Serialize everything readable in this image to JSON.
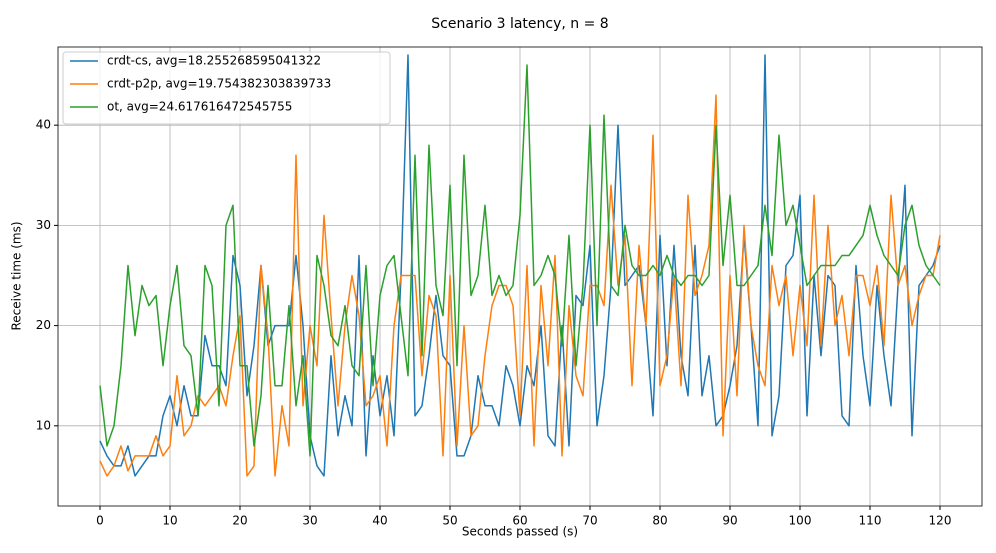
{
  "chart_data": {
    "type": "line",
    "title": "Scenario 3 latency, n = 8",
    "x_label": "Seconds passed (s)",
    "y_label": "Receive time (ms)",
    "x": [
      0,
      1,
      2,
      3,
      4,
      5,
      6,
      7,
      8,
      9,
      10,
      11,
      12,
      13,
      14,
      15,
      16,
      17,
      18,
      19,
      20,
      21,
      22,
      23,
      24,
      25,
      26,
      27,
      28,
      29,
      30,
      31,
      32,
      33,
      34,
      35,
      36,
      37,
      38,
      39,
      40,
      41,
      42,
      43,
      44,
      45,
      46,
      47,
      48,
      49,
      50,
      51,
      52,
      53,
      54,
      55,
      56,
      57,
      58,
      59,
      60,
      61,
      62,
      63,
      64,
      65,
      66,
      67,
      68,
      69,
      70,
      71,
      72,
      73,
      74,
      75,
      76,
      77,
      78,
      79,
      80,
      81,
      82,
      83,
      84,
      85,
      86,
      87,
      88,
      89,
      90,
      91,
      92,
      93,
      94,
      95,
      96,
      97,
      98,
      99,
      100,
      101,
      102,
      103,
      104,
      105,
      106,
      107,
      108,
      109,
      110,
      111,
      112,
      113,
      114,
      115,
      116,
      117,
      118,
      119,
      120
    ],
    "series": [
      {
        "name": "crdt-cs, avg=18.255268595041322",
        "color": "#1f77b4",
        "values": [
          8.5,
          7,
          6,
          6,
          8,
          5,
          6,
          7,
          7,
          11,
          13,
          10,
          14,
          11,
          11,
          19,
          16,
          16,
          14,
          27,
          24,
          13,
          18,
          26,
          18,
          20,
          20,
          20,
          27,
          20,
          9,
          6,
          5,
          17,
          9,
          13,
          10,
          27,
          7,
          17,
          11,
          15,
          9,
          25,
          47,
          11,
          12,
          17,
          23,
          17,
          16,
          7,
          7,
          9,
          15,
          12,
          12,
          10,
          16,
          14,
          10,
          16,
          14,
          20,
          9,
          8,
          20,
          8,
          23,
          22,
          28,
          10,
          15,
          24,
          40,
          24,
          25,
          26,
          20,
          11,
          29,
          16,
          28,
          17,
          13,
          28,
          13,
          17,
          10,
          11,
          14,
          18,
          29,
          20,
          10,
          47,
          9,
          13,
          26,
          27,
          33,
          11,
          25,
          17,
          25,
          24,
          11,
          10,
          26,
          17,
          12,
          24,
          17,
          12,
          24,
          34,
          9,
          24,
          25,
          26,
          28
        ]
      },
      {
        "name": "crdt-p2p, avg=19.754382303839733",
        "color": "#ff7f0e",
        "values": [
          6.5,
          5,
          6,
          8,
          5.5,
          7,
          7,
          7,
          9,
          7,
          8,
          15,
          9,
          10,
          13,
          12,
          13,
          14,
          12,
          17,
          21,
          5,
          6,
          26,
          19,
          5,
          12,
          8,
          37,
          12,
          20,
          16,
          31,
          21,
          12,
          20,
          25,
          21,
          12,
          13,
          15,
          8,
          20,
          25,
          25,
          25,
          15,
          23,
          21,
          7,
          25,
          8,
          20,
          9,
          10,
          17,
          22,
          24,
          24,
          22,
          11,
          26,
          8,
          24,
          16,
          27,
          7,
          22,
          15,
          13,
          24,
          24,
          22,
          34,
          24,
          29,
          14,
          28,
          20,
          39,
          14,
          17,
          25,
          14,
          33,
          23,
          25,
          28,
          43,
          9,
          25,
          13,
          30,
          20,
          16,
          14,
          26,
          22,
          25,
          17,
          24,
          18,
          33,
          18,
          30,
          20,
          23,
          17,
          25,
          25,
          22,
          26,
          18,
          33,
          24,
          26,
          20,
          23,
          25,
          25,
          29
        ]
      },
      {
        "name": "ot, avg=24.617616472545755",
        "color": "#2ca02c",
        "values": [
          14,
          8,
          10,
          16,
          26,
          19,
          24,
          22,
          23,
          16,
          22,
          26,
          18,
          17,
          11,
          26,
          24,
          12,
          30,
          32,
          16,
          16,
          8,
          13,
          24,
          14,
          14,
          22,
          12,
          17,
          7,
          27,
          24,
          19,
          18,
          22,
          16,
          15,
          26,
          14,
          23,
          26,
          27,
          21,
          15,
          37,
          17,
          38,
          24,
          21,
          34,
          16,
          37,
          23,
          25,
          32,
          23,
          25,
          23,
          24,
          31,
          46,
          24,
          25,
          27,
          25,
          18,
          29,
          16,
          24,
          40,
          20,
          41,
          24,
          23,
          30,
          26,
          25,
          25,
          26,
          25,
          27,
          25,
          24,
          25,
          25,
          24,
          25,
          40,
          26,
          33,
          24,
          24,
          25,
          26,
          32,
          27,
          39,
          30,
          32,
          28,
          24,
          25,
          26,
          26,
          26,
          27,
          27,
          28,
          29,
          32,
          29,
          27,
          26,
          25,
          30,
          32,
          28,
          26,
          25,
          24
        ]
      }
    ],
    "xlim": [
      -6,
      126
    ],
    "ylim": [
      2.0,
      47.8
    ],
    "xticks": [
      0,
      10,
      20,
      30,
      40,
      50,
      60,
      70,
      80,
      90,
      100,
      110,
      120
    ],
    "yticks": [
      10,
      20,
      30,
      40
    ],
    "grid": true,
    "legend": "upper left"
  }
}
